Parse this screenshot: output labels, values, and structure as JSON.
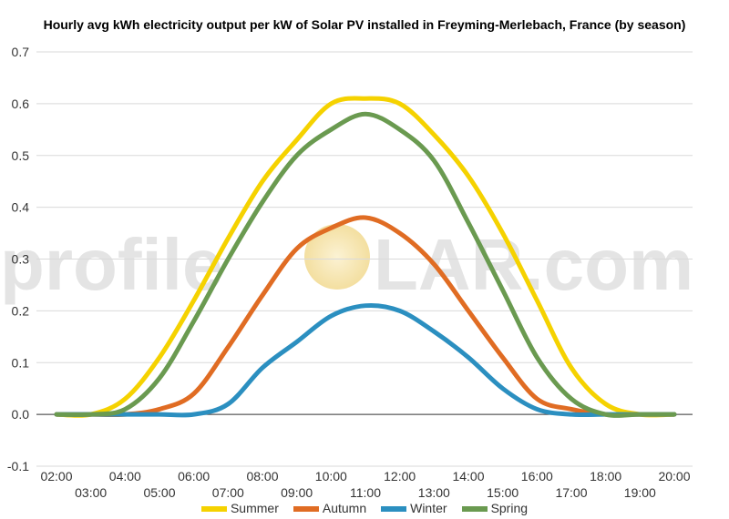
{
  "chart_data": {
    "type": "line",
    "title": "Hourly avg kWh electricity output per kW of Solar PV installed in Freyming-Merlebach, France (by season)",
    "xlabel": "",
    "ylabel": "",
    "ylim": [
      -0.1,
      0.7
    ],
    "yticks": [
      "-0.1",
      "0.0",
      "0.1",
      "0.2",
      "0.3",
      "0.4",
      "0.5",
      "0.6",
      "0.7"
    ],
    "grid": true,
    "legend_position": "bottom",
    "x": [
      "02:00",
      "03:00",
      "04:00",
      "05:00",
      "06:00",
      "07:00",
      "08:00",
      "09:00",
      "10:00",
      "11:00",
      "12:00",
      "13:00",
      "14:00",
      "15:00",
      "16:00",
      "17:00",
      "18:00",
      "19:00",
      "20:00"
    ],
    "series": [
      {
        "name": "Summer",
        "color": "#f5d200",
        "values": [
          0.0,
          0.0,
          0.03,
          0.11,
          0.22,
          0.34,
          0.45,
          0.53,
          0.6,
          0.61,
          0.6,
          0.54,
          0.46,
          0.35,
          0.22,
          0.09,
          0.02,
          0.0,
          0.0
        ]
      },
      {
        "name": "Autumn",
        "color": "#e06c23",
        "values": [
          0.0,
          0.0,
          0.0,
          0.01,
          0.04,
          0.13,
          0.23,
          0.32,
          0.36,
          0.38,
          0.35,
          0.29,
          0.2,
          0.11,
          0.03,
          0.01,
          0.0,
          0.0,
          0.0
        ]
      },
      {
        "name": "Winter",
        "color": "#2b8fc0",
        "values": [
          0.0,
          0.0,
          0.0,
          0.0,
          0.0,
          0.02,
          0.09,
          0.14,
          0.19,
          0.21,
          0.2,
          0.16,
          0.11,
          0.05,
          0.01,
          0.0,
          0.0,
          0.0,
          0.0
        ]
      },
      {
        "name": "Spring",
        "color": "#6a9a50",
        "values": [
          0.0,
          0.0,
          0.01,
          0.07,
          0.18,
          0.3,
          0.41,
          0.5,
          0.55,
          0.58,
          0.55,
          0.49,
          0.37,
          0.24,
          0.11,
          0.03,
          0.0,
          0.0,
          0.0
        ]
      }
    ]
  },
  "watermark": {
    "text_left": "profile",
    "text_right": "LAR.com",
    "sun_color": "#f3e0a6",
    "text_color": "#e4e4e4"
  }
}
